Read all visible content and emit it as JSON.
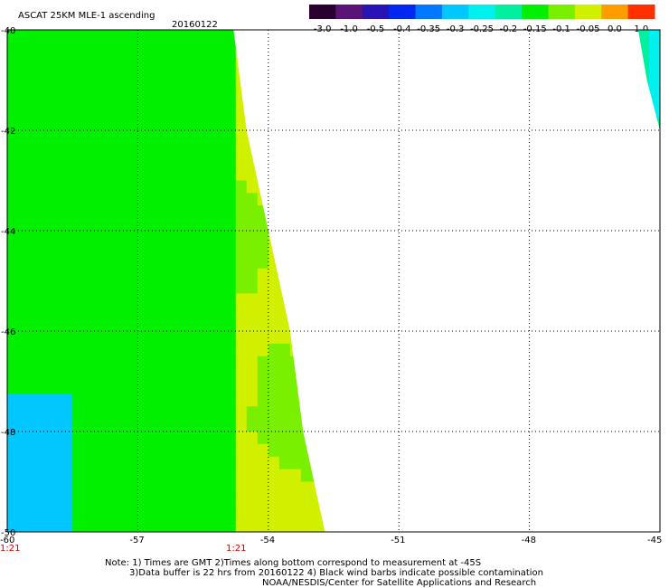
{
  "header": {
    "title": "ASCAT 25KM MLE-1 ascending",
    "date": "20160122"
  },
  "colorbar": {
    "labels": [
      "-3.0",
      "-1.0",
      "-0.5",
      "-0.4",
      "-0.35",
      "-0.3",
      "-0.25",
      "-0.2",
      "-0.15",
      "-0.1",
      "-0.05",
      "0.0",
      "1.0"
    ],
    "colors": [
      "#2a0030",
      "#5a1478",
      "#2814b4",
      "#0028f0",
      "#0078ff",
      "#00c8ff",
      "#00f0f0",
      "#00f0a0",
      "#00f000",
      "#78f000",
      "#d0f000",
      "#ff9c00",
      "#ff3000"
    ]
  },
  "axes": {
    "x_ticks": [
      "-60",
      "-57",
      "-54",
      "-51",
      "-48",
      "-45"
    ],
    "y_ticks": [
      "-40",
      "-42",
      "-44",
      "-46",
      "-48",
      "-50"
    ],
    "time_labels": [
      "1:21",
      "1:21"
    ]
  },
  "notes": {
    "line1": "Note: 1) Times are GMT 2)Times along bottom correspond to measurement at -45S",
    "line2": "3)Data buffer is 22 hrs from 20160122 4) Black wind barbs indicate possible contamination",
    "line3": "NOAA/NESDIS/Center for Satellite Applications and Research"
  },
  "chart_data": {
    "type": "heatmap",
    "title": "ASCAT 25KM MLE-1 ascending",
    "subtitle": "20160122",
    "xlim": [
      -60,
      -45
    ],
    "ylim": [
      -50,
      -40
    ],
    "x_ticks": [
      -60,
      -57,
      -54,
      -51,
      -48,
      -45
    ],
    "y_ticks": [
      -40,
      -42,
      -44,
      -46,
      -48,
      -50
    ],
    "grid": true,
    "color_scale": [
      -3.0,
      -1.0,
      -0.5,
      -0.4,
      -0.35,
      -0.3,
      -0.25,
      -0.2,
      -0.15,
      -0.1,
      -0.05,
      0.0,
      1.0
    ],
    "swaths": [
      {
        "name": "western swath",
        "east_edge": [
          [
            -40,
            -54.8
          ],
          [
            -42,
            -54.5
          ],
          [
            -44,
            -54.0
          ],
          [
            -46,
            -53.5
          ],
          [
            -48,
            -53.2
          ],
          [
            -50,
            -52.7
          ]
        ],
        "dominant_range": [
          -0.15,
          -0.1
        ]
      },
      {
        "name": "eastern swath",
        "west_edge": [
          [
            -40,
            -45.5
          ],
          [
            -41,
            -45.3
          ],
          [
            -42,
            -45.0
          ]
        ],
        "dominant_range": [
          -0.25,
          -0.15
        ]
      }
    ]
  }
}
